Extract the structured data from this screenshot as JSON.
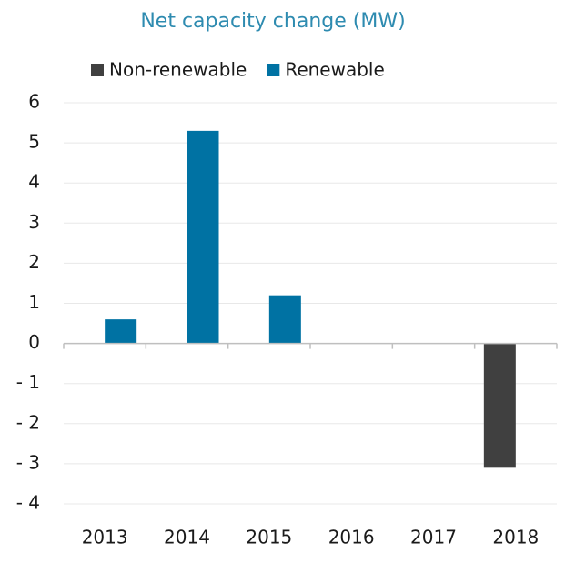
{
  "chart_data": {
    "type": "bar",
    "title": "Net capacity change (MW)",
    "categories": [
      "2013",
      "2014",
      "2015",
      "2016",
      "2017",
      "2018"
    ],
    "series": [
      {
        "name": "Non-renewable",
        "color": "#404040",
        "values": [
          0,
          0,
          0,
          0,
          0,
          -3.1
        ]
      },
      {
        "name": "Renewable",
        "color": "#0072a3",
        "values": [
          0.6,
          5.3,
          1.2,
          0,
          0,
          0
        ]
      }
    ],
    "ylim": [
      -4,
      6
    ],
    "yticks": [
      {
        "value": -4,
        "label": "- 4"
      },
      {
        "value": -3,
        "label": "- 3"
      },
      {
        "value": -2,
        "label": "- 2"
      },
      {
        "value": -1,
        "label": "- 1"
      },
      0,
      1,
      2,
      3,
      4,
      5,
      6
    ],
    "grid": true,
    "legend": "top"
  }
}
